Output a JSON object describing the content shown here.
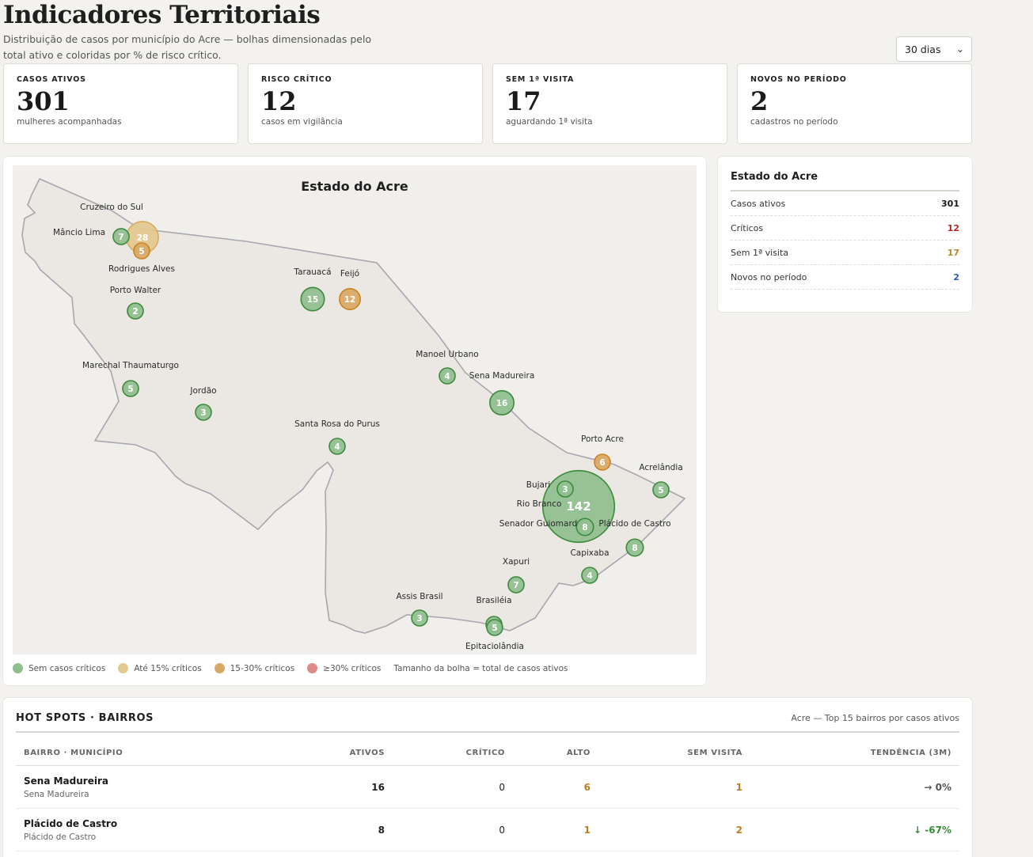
{
  "header": {
    "title": "Indicadores Territoriais",
    "subtitle": "Distribuição de casos por município do Acre — bolhas dimensionadas pelo total ativo e coloridas por % de risco crítico."
  },
  "period_select": {
    "value": "30 dias"
  },
  "kpis": [
    {
      "label": "CASOS ATIVOS",
      "value": "301",
      "sub": "mulheres acompanhadas"
    },
    {
      "label": "RISCO CRÍTICO",
      "value": "12",
      "sub": "casos em vigilância"
    },
    {
      "label": "SEM 1ª VISITA",
      "value": "17",
      "sub": "aguardando 1ª visita"
    },
    {
      "label": "NOVOS NO PERÍODO",
      "value": "2",
      "sub": "cadastros no período"
    }
  ],
  "map": {
    "title": "Estado do Acre",
    "municipalities": [
      {
        "name": "Cruzeiro do Sul",
        "active": 28,
        "category": "ate15",
        "value_label": "28"
      },
      {
        "name": "Mâncio Lima",
        "active": 7,
        "category": "sem",
        "value_label": "7"
      },
      {
        "name": "Rodrigues Alves",
        "active": 5,
        "category": "15a30",
        "value_label": "5"
      },
      {
        "name": "Porto Walter",
        "active": 2,
        "category": "sem",
        "value_label": "2"
      },
      {
        "name": "Tarauacá",
        "active": 15,
        "category": "sem",
        "value_label": "15"
      },
      {
        "name": "Feijó",
        "active": 12,
        "category": "15a30",
        "value_label": "12"
      },
      {
        "name": "Marechal Thaumaturgo",
        "active": 5,
        "category": "sem",
        "value_label": "5"
      },
      {
        "name": "Jordão",
        "active": 3,
        "category": "sem",
        "value_label": "3"
      },
      {
        "name": "Manoel Urbano",
        "active": 4,
        "category": "sem",
        "value_label": "4"
      },
      {
        "name": "Sena Madureira",
        "active": 16,
        "category": "sem",
        "value_label": "16"
      },
      {
        "name": "Santa Rosa do Purus",
        "active": 4,
        "category": "sem",
        "value_label": "4"
      },
      {
        "name": "Porto Acre",
        "active": 6,
        "category": "15a30",
        "value_label": "6"
      },
      {
        "name": "Acrelândia",
        "active": 5,
        "category": "sem",
        "value_label": "5"
      },
      {
        "name": "Rio Branco",
        "active": 142,
        "category": "sem",
        "value_label": "142"
      },
      {
        "name": "Bujari",
        "active": 3,
        "category": "sem",
        "value_label": "3"
      },
      {
        "name": "Senador Guiomard",
        "active": 8,
        "category": "sem",
        "value_label": "8"
      },
      {
        "name": "Plácido de Castro",
        "active": 8,
        "category": "sem",
        "value_label": "8"
      },
      {
        "name": "Capixaba",
        "active": 4,
        "category": "sem",
        "value_label": "4"
      },
      {
        "name": "Xapuri",
        "active": 7,
        "category": "sem",
        "value_label": "7"
      },
      {
        "name": "Assis Brasil",
        "active": 3,
        "category": "sem",
        "value_label": "3"
      },
      {
        "name": "Brasiléia",
        "active": 6,
        "category": "sem",
        "value_label": "6"
      },
      {
        "name": "Epitaciolândia",
        "active": 5,
        "category": "sem",
        "value_label": "5"
      }
    ],
    "legend": [
      {
        "label": "Sem casos críticos",
        "color": "#8fbf8f"
      },
      {
        "label": "Até 15% críticos",
        "color": "#e3c98f"
      },
      {
        "label": "15-30% críticos",
        "color": "#d9a865"
      },
      {
        "label": "≥30% críticos",
        "color": "#de8a86"
      }
    ],
    "legend_note": "Tamanho da bolha = total de casos ativos"
  },
  "side_panel": {
    "title": "Estado do Acre",
    "rows": [
      {
        "label": "Casos ativos",
        "value": "301",
        "color": "#1a1a1a"
      },
      {
        "label": "Críticos",
        "value": "12",
        "color": "#b3261e"
      },
      {
        "label": "Sem 1ª visita",
        "value": "17",
        "color": "#b8862a"
      },
      {
        "label": "Novos no período",
        "value": "2",
        "color": "#2b5aa8"
      }
    ]
  },
  "hotspots": {
    "title": "HOT SPOTS · BAIRROS",
    "meta": "Acre — Top 15 bairros por casos ativos",
    "columns": [
      "BAIRRO · MUNICÍPIO",
      "ATIVOS",
      "CRÍTICO",
      "ALTO",
      "SEM VISITA",
      "TENDÊNCIA (3M)"
    ],
    "rows": [
      {
        "bairro": "Sena Madureira",
        "municipio": "Sena Madureira",
        "ativos": "16",
        "critico": "0",
        "alto": "6",
        "sem_visita": "1",
        "tendencia": "→ 0%",
        "tendencia_color": "#555555"
      },
      {
        "bairro": "Plácido de Castro",
        "municipio": "Plácido de Castro",
        "ativos": "8",
        "critico": "0",
        "alto": "1",
        "sem_visita": "2",
        "tendencia": "↓ -67%",
        "tendencia_color": "#3a8a3a"
      }
    ]
  }
}
